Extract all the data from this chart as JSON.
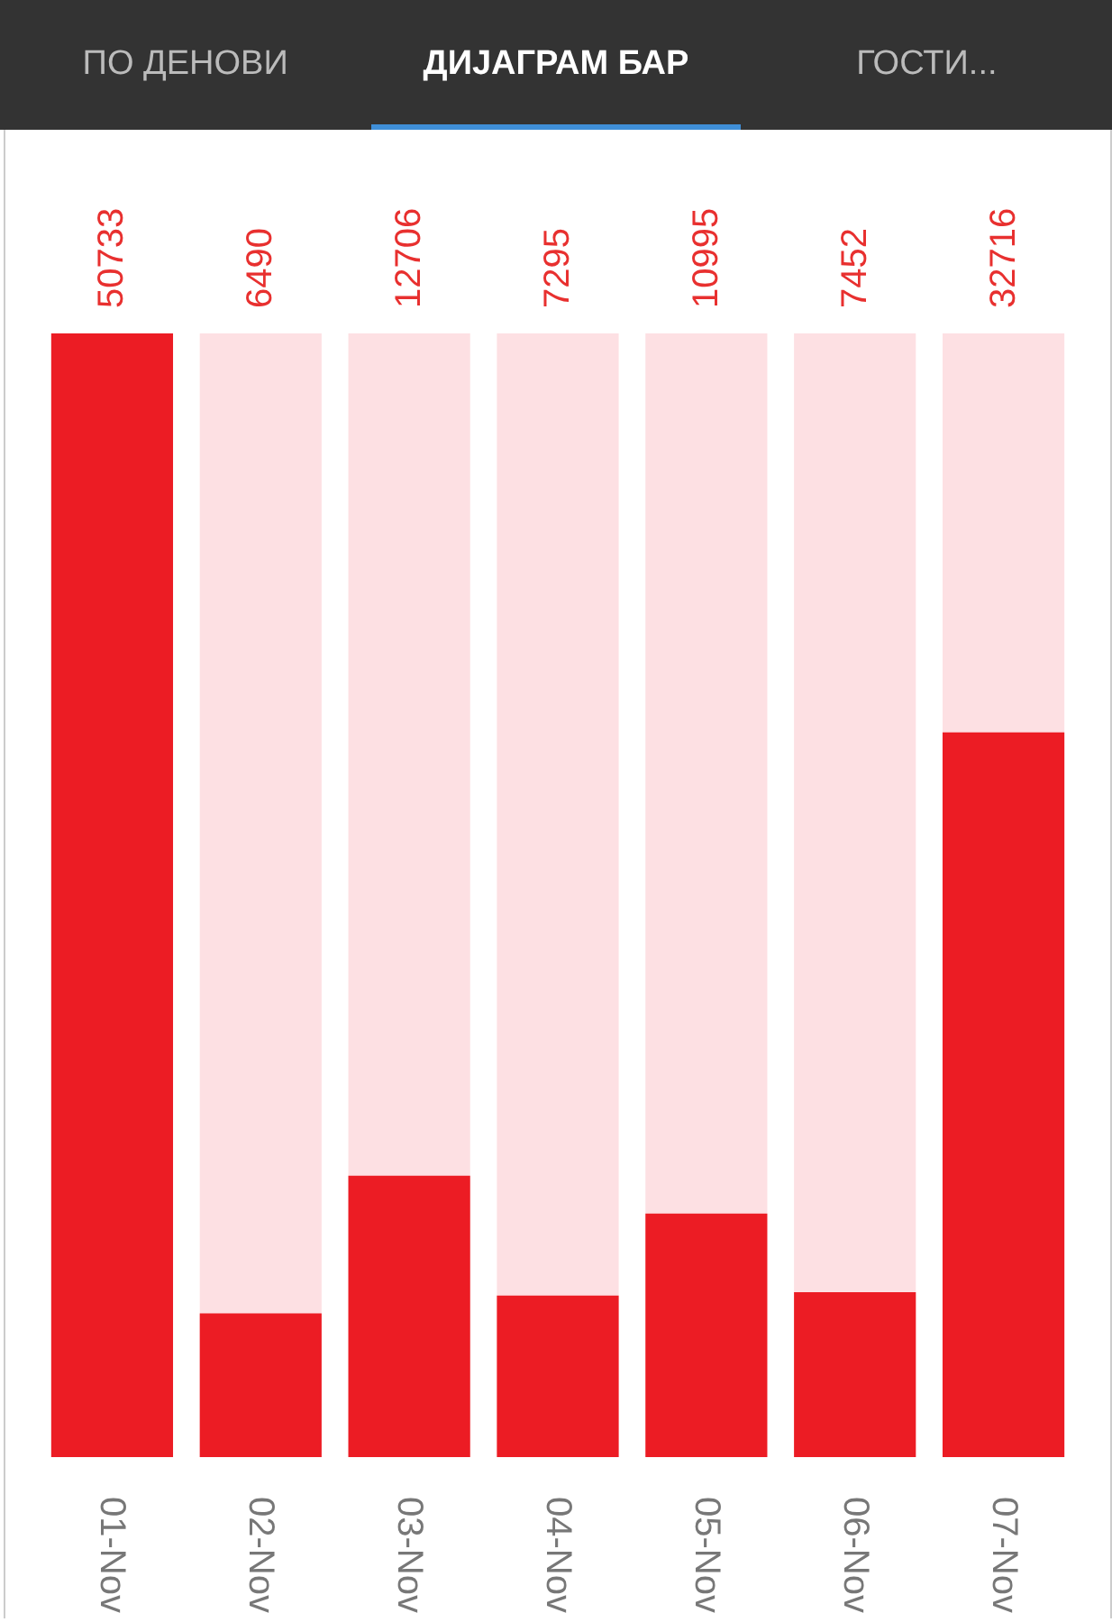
{
  "chart_data": {
    "type": "bar",
    "annotations": [
      "ПО ДЕНОВИ",
      "ДИЈАГРАМ БАР",
      "ГОСТИ..."
    ],
    "categories": [
      "01-Nov",
      "02-Nov",
      "03-Nov",
      "04-Nov",
      "05-Nov",
      "06-Nov",
      "07-Nov"
    ],
    "values": [
      50733,
      6490,
      12706,
      7295,
      10995,
      7452,
      32716
    ],
    "color": "#ec1c24",
    "data_labels": true
  }
}
